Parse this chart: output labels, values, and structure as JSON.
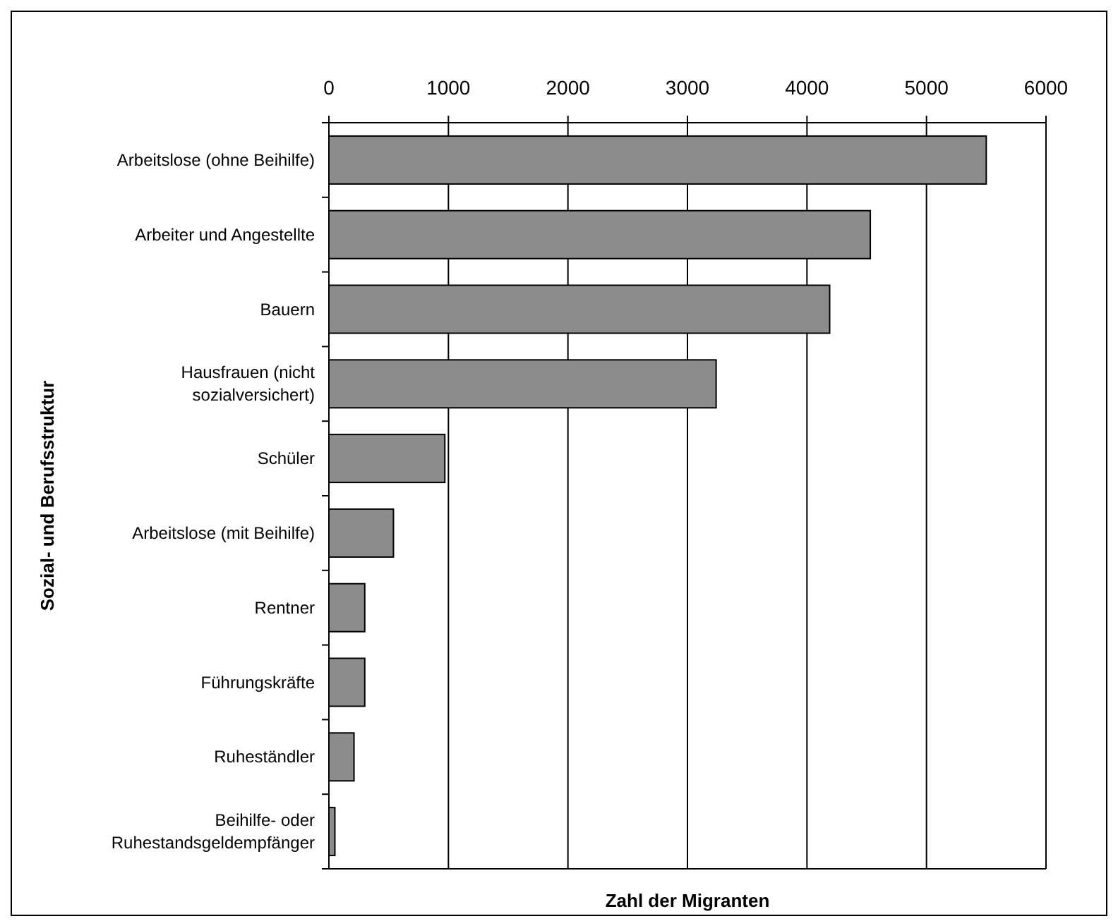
{
  "chart_data": {
    "type": "bar",
    "orientation": "horizontal",
    "xlabel": "Zahl der Migranten",
    "ylabel": "Sozial- und Berufsstruktur",
    "categories": [
      "Arbeitslose (ohne Beihilfe)",
      "Arbeiter und Angestellte",
      "Bauern",
      "Hausfrauen (nicht sozialversichert)",
      "Schüler",
      "Arbeitslose (mit Beihilfe)",
      "Rentner",
      "Führungskräfte",
      "Ruheständler",
      "Beihilfe- oder Ruhestandsgeldempfänger"
    ],
    "values": [
      5500,
      4530,
      4190,
      3240,
      970,
      540,
      300,
      300,
      210,
      50
    ],
    "color": "#8c8c8c",
    "xlim": [
      0,
      6000
    ],
    "xticks": [
      0,
      1000,
      2000,
      3000,
      4000,
      5000,
      6000
    ],
    "grid": "x"
  }
}
